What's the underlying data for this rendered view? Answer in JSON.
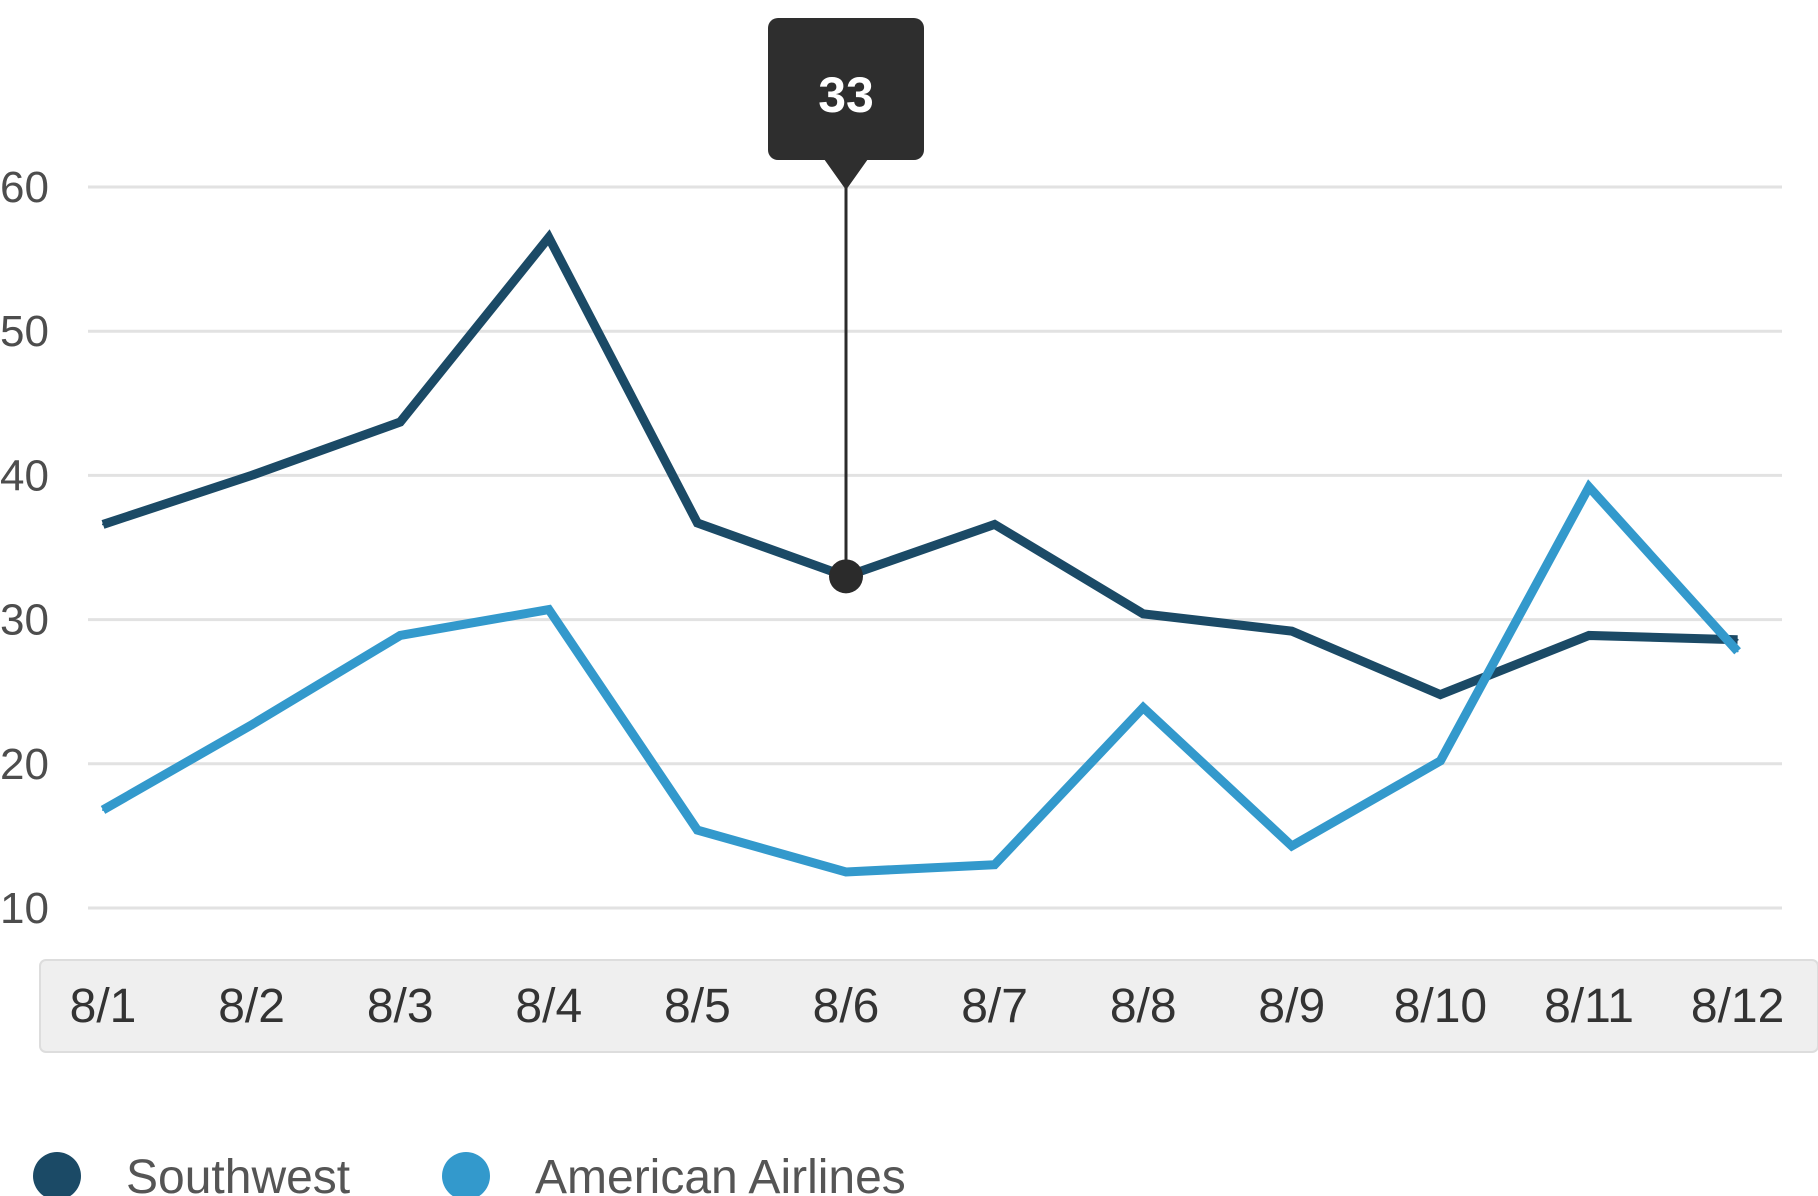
{
  "chart_data": {
    "type": "line",
    "categories": [
      "8/1",
      "8/2",
      "8/3",
      "8/4",
      "8/5",
      "8/6",
      "8/7",
      "8/8",
      "8/9",
      "8/10",
      "8/11",
      "8/12"
    ],
    "series": [
      {
        "name": "Southwest",
        "color": "#1b4a66",
        "values": [
          36.6,
          40,
          43.7,
          56.5,
          36.7,
          33,
          36.6,
          30.4,
          29.2,
          24.8,
          28.9,
          28.6
        ]
      },
      {
        "name": "American Airlines",
        "color": "#3399cc",
        "values": [
          16.8,
          22.7,
          28.9,
          30.7,
          15.4,
          12.5,
          13,
          23.9,
          14.3,
          20.2,
          39.2,
          27.8
        ]
      }
    ],
    "ylim": [
      10,
      60
    ],
    "yticks": [
      "10",
      "20",
      "30",
      "40",
      "50",
      "60"
    ],
    "grid": true,
    "legend": "bottom-left",
    "tooltip": {
      "category": "8/6",
      "series": "Southwest",
      "label": "33"
    }
  }
}
